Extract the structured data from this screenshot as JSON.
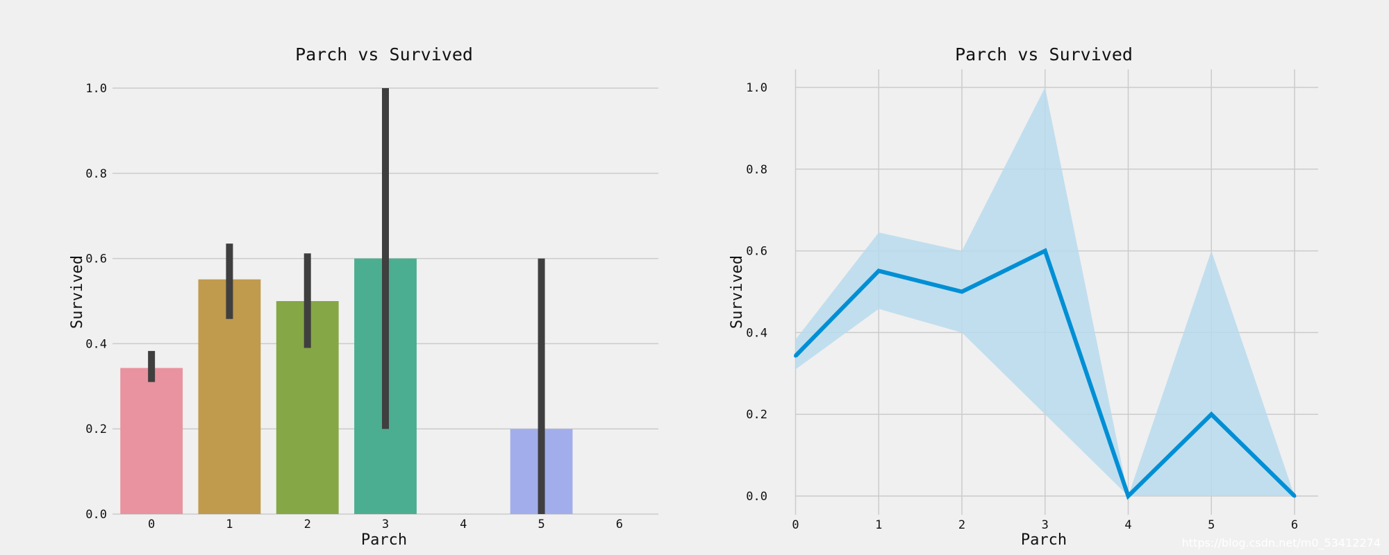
{
  "watermark": "https://blog.csdn.net/m0_53412274",
  "colors": {
    "background": "#f0f0f0",
    "grid": "#cbcbcb",
    "errorbar": "#3f3f3f",
    "line": "#008fd5",
    "band": "#b9dbed"
  },
  "chart_data": [
    {
      "type": "bar",
      "title": "Parch vs Survived",
      "xlabel": "Parch",
      "ylabel": "Survived",
      "categories": [
        "0",
        "1",
        "2",
        "3",
        "4",
        "5",
        "6"
      ],
      "values": [
        0.343,
        0.551,
        0.5,
        0.6,
        null,
        0.2,
        null
      ],
      "ci_low": [
        0.31,
        0.458,
        0.39,
        0.2,
        null,
        0.0,
        null
      ],
      "ci_high": [
        0.383,
        0.635,
        0.612,
        1.0,
        null,
        0.6,
        null
      ],
      "bar_colors": [
        "#e8939f",
        "#c09a4d",
        "#86a745",
        "#4cae90",
        null,
        "#a2aeeb",
        null
      ],
      "ylim": [
        0,
        1.0
      ],
      "yticks": [
        "0.0",
        "0.2",
        "0.4",
        "0.6",
        "0.8",
        "1.0"
      ],
      "grid": "horizontal"
    },
    {
      "type": "line",
      "title": "Parch vs Survived",
      "xlabel": "Parch",
      "ylabel": "Survived",
      "x": [
        0,
        1,
        2,
        3,
        4,
        5,
        6
      ],
      "xticks": [
        "0",
        "1",
        "2",
        "3",
        "4",
        "5",
        "6"
      ],
      "y": [
        0.343,
        0.551,
        0.5,
        0.6,
        0.0,
        0.2,
        0.0
      ],
      "ci_low": [
        0.31,
        0.458,
        0.4,
        0.2,
        0.0,
        0.0,
        0.0
      ],
      "ci_high": [
        0.383,
        0.645,
        0.6,
        1.0,
        0.0,
        0.6,
        0.0
      ],
      "ylim": [
        0,
        1.0
      ],
      "yticks": [
        "0.0",
        "0.2",
        "0.4",
        "0.6",
        "0.8",
        "1.0"
      ],
      "grid": "both"
    }
  ]
}
